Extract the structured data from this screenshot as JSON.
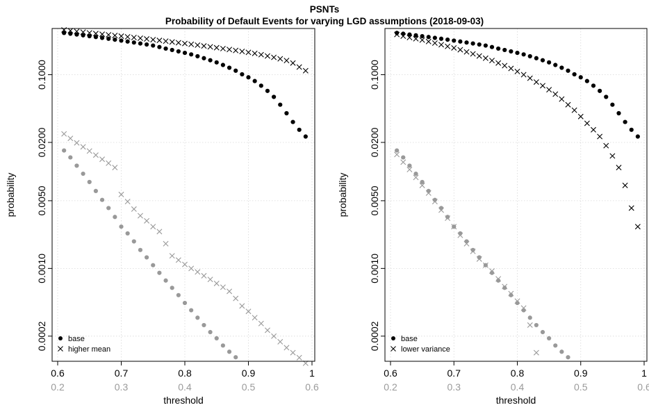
{
  "titles": {
    "main": "PSNTs",
    "sub": "Probability of Default Events for varying LGD assumptions (2018-09-03)"
  },
  "colors": {
    "primary": "#000000",
    "secondary": "#999999"
  },
  "chart_data": [
    {
      "type": "scatter",
      "xlabel": "threshold",
      "ylabel": "probability",
      "ylog": true,
      "ylim": [
        0.00011,
        0.3
      ],
      "grid": true,
      "legend_position": "bottom-left",
      "x_axis_top": {
        "ticks": [
          0.6,
          0.7,
          0.8,
          0.9,
          1
        ],
        "labels": [
          "0.6",
          "0.7",
          "0.8",
          "0.9",
          "1"
        ],
        "range": [
          0.6,
          1.0
        ]
      },
      "x_axis_bottom": {
        "ticks": [
          0.2,
          0.3,
          0.4,
          0.5,
          0.6
        ],
        "labels": [
          "0.2",
          "0.3",
          "0.4",
          "0.5",
          "0.6"
        ],
        "range": [
          0.2,
          0.6
        ]
      },
      "y_ticks": [
        0.1,
        0.02,
        0.005,
        0.001,
        0.0002
      ],
      "y_tick_labels": [
        "0.1000",
        "0.0200",
        "0.0050",
        "0.0010",
        "0.0002"
      ],
      "series": [
        {
          "name": "base",
          "marker": "dot",
          "color": "#000000",
          "axis": "top",
          "x": [
            0.61,
            0.62,
            0.63,
            0.64,
            0.65,
            0.66,
            0.67,
            0.68,
            0.69,
            0.7,
            0.71,
            0.72,
            0.73,
            0.74,
            0.75,
            0.76,
            0.77,
            0.78,
            0.79,
            0.8,
            0.81,
            0.82,
            0.83,
            0.84,
            0.85,
            0.86,
            0.87,
            0.88,
            0.89,
            0.9,
            0.91,
            0.92,
            0.93,
            0.94,
            0.95,
            0.96,
            0.97,
            0.98,
            0.99
          ],
          "y": [
            0.27,
            0.265,
            0.26,
            0.255,
            0.25,
            0.245,
            0.24,
            0.235,
            0.23,
            0.225,
            0.22,
            0.215,
            0.21,
            0.205,
            0.2,
            0.193,
            0.186,
            0.18,
            0.174,
            0.168,
            0.162,
            0.155,
            0.148,
            0.141,
            0.134,
            0.126,
            0.118,
            0.11,
            0.101,
            0.094,
            0.086,
            0.077,
            0.068,
            0.059,
            0.049,
            0.04,
            0.0325,
            0.027,
            0.023
          ]
        },
        {
          "name": "",
          "marker": "dot",
          "color": "#999999",
          "axis": "bottom",
          "x": [
            0.21,
            0.22,
            0.23,
            0.24,
            0.25,
            0.26,
            0.27,
            0.28,
            0.29,
            0.3,
            0.31,
            0.32,
            0.33,
            0.34,
            0.35,
            0.36,
            0.37,
            0.38,
            0.39,
            0.4,
            0.41,
            0.42,
            0.43,
            0.44,
            0.45,
            0.46,
            0.47,
            0.48
          ],
          "y": [
            0.0165,
            0.014,
            0.0115,
            0.0095,
            0.0078,
            0.0063,
            0.0051,
            0.0042,
            0.0034,
            0.0027,
            0.0023,
            0.0019,
            0.00155,
            0.0013,
            0.00108,
            0.0009,
            0.00075,
            0.00063,
            0.00053,
            0.00044,
            0.00037,
            0.00031,
            0.00026,
            0.00022,
            0.00019,
            0.00016,
            0.000138,
            0.000121
          ]
        },
        {
          "name": "higher mean",
          "marker": "cross",
          "color": "#000000",
          "axis": "top",
          "x": [
            0.61,
            0.62,
            0.63,
            0.64,
            0.65,
            0.66,
            0.67,
            0.68,
            0.69,
            0.7,
            0.71,
            0.72,
            0.73,
            0.74,
            0.75,
            0.76,
            0.77,
            0.78,
            0.79,
            0.8,
            0.81,
            0.82,
            0.83,
            0.84,
            0.85,
            0.86,
            0.87,
            0.88,
            0.89,
            0.9,
            0.91,
            0.92,
            0.93,
            0.94,
            0.95,
            0.96,
            0.97,
            0.98,
            0.99
          ],
          "y": [
            0.29,
            0.285,
            0.28,
            0.275,
            0.27,
            0.266,
            0.262,
            0.258,
            0.254,
            0.25,
            0.246,
            0.242,
            0.238,
            0.234,
            0.23,
            0.226,
            0.222,
            0.218,
            0.214,
            0.21,
            0.206,
            0.202,
            0.198,
            0.194,
            0.19,
            0.186,
            0.182,
            0.178,
            0.174,
            0.17,
            0.166,
            0.161,
            0.156,
            0.151,
            0.146,
            0.14,
            0.132,
            0.12,
            0.11
          ]
        },
        {
          "name": "",
          "marker": "cross",
          "color": "#999999",
          "axis": "bottom",
          "x": [
            0.21,
            0.22,
            0.23,
            0.24,
            0.25,
            0.26,
            0.27,
            0.28,
            0.29,
            0.3,
            0.31,
            0.32,
            0.33,
            0.34,
            0.35,
            0.36,
            0.37,
            0.38,
            0.39,
            0.4,
            0.41,
            0.42,
            0.43,
            0.44,
            0.45,
            0.46,
            0.47,
            0.48,
            0.49,
            0.5,
            0.51,
            0.52,
            0.53,
            0.54,
            0.55,
            0.56,
            0.57,
            0.58,
            0.59
          ],
          "y": [
            0.0245,
            0.022,
            0.0198,
            0.018,
            0.0163,
            0.0148,
            0.0134,
            0.0122,
            0.011,
            0.0058,
            0.0049,
            0.0041,
            0.0035,
            0.0031,
            0.0027,
            0.0024,
            0.0018,
            0.00135,
            0.00122,
            0.0011,
            0.001,
            0.00092,
            0.00084,
            0.00077,
            0.0007,
            0.00064,
            0.00058,
            0.00049,
            0.00041,
            0.00036,
            0.00031,
            0.00027,
            0.00023,
            0.0002,
            0.000175,
            0.000152,
            0.000135,
            0.00012,
            0.000105
          ]
        }
      ]
    },
    {
      "type": "scatter",
      "xlabel": "threshold",
      "ylabel": "probability",
      "ylog": true,
      "ylim": [
        0.00011,
        0.3
      ],
      "grid": true,
      "legend_position": "bottom-left",
      "x_axis_top": {
        "ticks": [
          0.6,
          0.7,
          0.8,
          0.9,
          1
        ],
        "labels": [
          "0.6",
          "0.7",
          "0.8",
          "0.9",
          "1"
        ],
        "range": [
          0.6,
          1.0
        ]
      },
      "x_axis_bottom": {
        "ticks": [
          0.2,
          0.3,
          0.4,
          0.5,
          0.6
        ],
        "labels": [
          "0.2",
          "0.3",
          "0.4",
          "0.5",
          "0.6"
        ],
        "range": [
          0.2,
          0.6
        ]
      },
      "y_ticks": [
        0.1,
        0.02,
        0.005,
        0.001,
        0.0002
      ],
      "y_tick_labels": [
        "0.1000",
        "0.0200",
        "0.0050",
        "0.0010",
        "0.0002"
      ],
      "series": [
        {
          "name": "base",
          "marker": "dot",
          "color": "#000000",
          "axis": "top",
          "x": [
            0.61,
            0.62,
            0.63,
            0.64,
            0.65,
            0.66,
            0.67,
            0.68,
            0.69,
            0.7,
            0.71,
            0.72,
            0.73,
            0.74,
            0.75,
            0.76,
            0.77,
            0.78,
            0.79,
            0.8,
            0.81,
            0.82,
            0.83,
            0.84,
            0.85,
            0.86,
            0.87,
            0.88,
            0.89,
            0.9,
            0.91,
            0.92,
            0.93,
            0.94,
            0.95,
            0.96,
            0.97,
            0.98,
            0.99
          ],
          "y": [
            0.27,
            0.265,
            0.26,
            0.255,
            0.25,
            0.245,
            0.24,
            0.235,
            0.23,
            0.225,
            0.22,
            0.215,
            0.21,
            0.205,
            0.2,
            0.193,
            0.186,
            0.18,
            0.174,
            0.168,
            0.162,
            0.155,
            0.148,
            0.141,
            0.134,
            0.126,
            0.118,
            0.11,
            0.101,
            0.094,
            0.086,
            0.077,
            0.068,
            0.059,
            0.049,
            0.04,
            0.0325,
            0.027,
            0.023
          ]
        },
        {
          "name": "",
          "marker": "dot",
          "color": "#999999",
          "axis": "bottom",
          "x": [
            0.21,
            0.22,
            0.23,
            0.24,
            0.25,
            0.26,
            0.27,
            0.28,
            0.29,
            0.3,
            0.31,
            0.32,
            0.33,
            0.34,
            0.35,
            0.36,
            0.37,
            0.38,
            0.39,
            0.4,
            0.41,
            0.42,
            0.43,
            0.44,
            0.45,
            0.46,
            0.47,
            0.48
          ],
          "y": [
            0.0165,
            0.014,
            0.0115,
            0.0095,
            0.0078,
            0.0063,
            0.0051,
            0.0042,
            0.0034,
            0.0027,
            0.0023,
            0.0019,
            0.00155,
            0.0013,
            0.00108,
            0.0009,
            0.00075,
            0.00063,
            0.00053,
            0.00044,
            0.00037,
            0.00031,
            0.00026,
            0.00022,
            0.00019,
            0.00016,
            0.000138,
            0.000121
          ]
        },
        {
          "name": "lower variance",
          "marker": "cross",
          "color": "#000000",
          "axis": "top",
          "x": [
            0.61,
            0.62,
            0.63,
            0.64,
            0.65,
            0.66,
            0.67,
            0.68,
            0.69,
            0.7,
            0.71,
            0.72,
            0.73,
            0.74,
            0.75,
            0.76,
            0.77,
            0.78,
            0.79,
            0.8,
            0.81,
            0.82,
            0.83,
            0.84,
            0.85,
            0.86,
            0.87,
            0.88,
            0.89,
            0.9,
            0.91,
            0.92,
            0.93,
            0.94,
            0.95,
            0.96,
            0.97,
            0.98,
            0.99
          ],
          "y": [
            0.26,
            0.25,
            0.242,
            0.235,
            0.228,
            0.22,
            0.212,
            0.204,
            0.196,
            0.189,
            0.181,
            0.172,
            0.164,
            0.156,
            0.148,
            0.14,
            0.132,
            0.124,
            0.116,
            0.108,
            0.1,
            0.092,
            0.084,
            0.077,
            0.07,
            0.063,
            0.056,
            0.049,
            0.043,
            0.037,
            0.0315,
            0.027,
            0.023,
            0.0185,
            0.0145,
            0.011,
            0.0072,
            0.0042,
            0.0027
          ]
        },
        {
          "name": "",
          "marker": "cross",
          "color": "#999999",
          "axis": "bottom",
          "x": [
            0.21,
            0.22,
            0.23,
            0.24,
            0.25,
            0.26,
            0.27,
            0.28,
            0.29,
            0.3,
            0.31,
            0.32,
            0.33,
            0.34,
            0.35,
            0.36,
            0.37,
            0.38,
            0.39,
            0.4,
            0.41,
            0.42,
            0.43
          ],
          "y": [
            0.015,
            0.0125,
            0.0105,
            0.0087,
            0.0072,
            0.006,
            0.0049,
            0.004,
            0.0033,
            0.0027,
            0.0022,
            0.0018,
            0.0015,
            0.00125,
            0.00108,
            0.00094,
            0.00078,
            0.00065,
            0.00055,
            0.00046,
            0.00039,
            0.00026,
            0.000135
          ]
        }
      ]
    }
  ]
}
